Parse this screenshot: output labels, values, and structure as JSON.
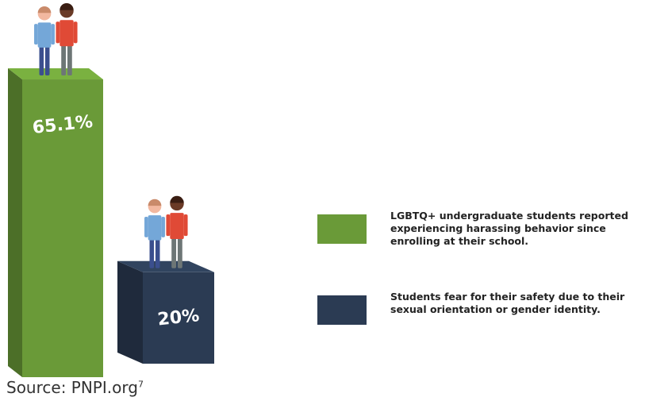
{
  "chart_data": {
    "type": "bar",
    "categories": [
      null
    ],
    "series": [
      {
        "name": "LGBTQ+ undergraduate students reported experiencing harassing behavior since enrolling at their school.",
        "color": "#6a9a38",
        "values": [
          65.1
        ],
        "value_labels": [
          "65.1%"
        ]
      },
      {
        "name": "Students fear for their safety due to their sexual orientation or gender identity.",
        "color": "#2b3b53",
        "values": [
          20
        ],
        "value_labels": [
          "20%"
        ]
      }
    ],
    "source": "Source: PNPI.org",
    "source_note": "7"
  }
}
